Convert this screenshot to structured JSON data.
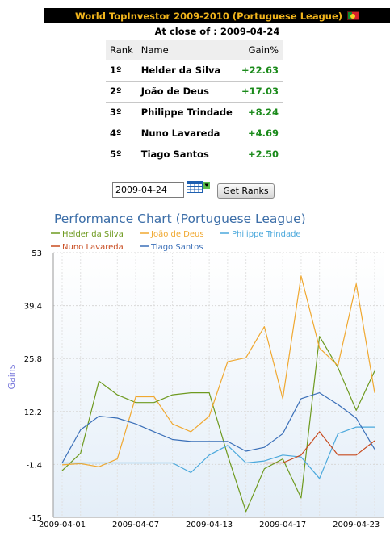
{
  "header": {
    "title": "World TopInvestor 2009-2010 (Portuguese League)",
    "flag_icon": "portugal-flag-icon"
  },
  "close_line": {
    "label": "At close of :",
    "date": "2009-04-24"
  },
  "ranking_table": {
    "columns": [
      "Rank",
      "Name",
      "Gain%"
    ],
    "rows": [
      {
        "rank": "1º",
        "name": "Helder da Silva",
        "gain": "+22.63"
      },
      {
        "rank": "2º",
        "name": "João de Deus",
        "gain": "+17.03"
      },
      {
        "rank": "3º",
        "name": "Philippe Trindade",
        "gain": "+8.24"
      },
      {
        "rank": "4º",
        "name": "Nuno Lavareda",
        "gain": "+4.69"
      },
      {
        "rank": "5º",
        "name": "Tiago Santos",
        "gain": "+2.50"
      }
    ]
  },
  "controls": {
    "date_value": "2009-04-24",
    "calendar_icon": "calendar-icon",
    "get_ranks_label": "Get Ranks"
  },
  "colors": {
    "header_bg": "#000000",
    "header_text": "#f2b51c",
    "gain_green": "#1a8a1a",
    "chart_title": "#3c6ea8"
  },
  "chart_data": {
    "type": "line",
    "title": "Performance Chart (Portuguese League)",
    "ylabel": "Gains",
    "xlabel": "",
    "ylim": [
      -15,
      53
    ],
    "yticks": [
      -15,
      -1.4,
      12.2,
      25.8,
      39.4,
      53
    ],
    "ytick_labels": [
      "-15",
      "-1.4",
      "12.2",
      "25.8",
      "39.4",
      "53"
    ],
    "x": [
      "2009-04-01",
      "2009-04-02",
      "2009-04-03",
      "2009-04-06",
      "2009-04-07",
      "2009-04-08",
      "2009-04-09",
      "2009-04-10",
      "2009-04-13",
      "2009-04-14",
      "2009-04-15",
      "2009-04-16",
      "2009-04-17",
      "2009-04-20",
      "2009-04-21",
      "2009-04-22",
      "2009-04-23",
      "2009-04-24"
    ],
    "xtick_labels": [
      {
        "index": 0,
        "label": "2009-04-01"
      },
      {
        "index": 4,
        "label": "2009-04-07"
      },
      {
        "index": 8,
        "label": "2009-04-13"
      },
      {
        "index": 12,
        "label": "2009-04-17"
      },
      {
        "index": 16,
        "label": "2009-04-23"
      }
    ],
    "legend_position": "top",
    "grid": true,
    "series": [
      {
        "name": "Helder da Silva",
        "color": "#6e9a1f",
        "values": [
          -3,
          1.5,
          20,
          16.5,
          14.5,
          14.5,
          16.5,
          17,
          17,
          1,
          -13.5,
          -2.5,
          0,
          -10,
          31.5,
          23.5,
          12.5,
          22.6
        ]
      },
      {
        "name": "João de Deus",
        "color": "#f0a830",
        "values": [
          -1.5,
          -1.2,
          -2,
          0,
          16,
          16,
          9,
          7,
          11,
          25,
          26,
          34,
          15.5,
          47,
          28.5,
          24,
          45,
          17
        ]
      },
      {
        "name": "Philippe Trindade",
        "color": "#4aa8dc",
        "values": [
          -1,
          -1,
          -1,
          -1,
          -1,
          -1,
          -1,
          -3.5,
          1,
          3.5,
          -1,
          -0.5,
          1,
          0.5,
          -5,
          6.5,
          8.2,
          8.2
        ]
      },
      {
        "name": "Nuno Lavareda",
        "color": "#c84a1e",
        "values": [
          null,
          null,
          null,
          null,
          null,
          null,
          null,
          null,
          null,
          null,
          null,
          -1,
          -1,
          1,
          7,
          1,
          1,
          4.7
        ]
      },
      {
        "name": "Tiago Santos",
        "color": "#3a6fb8",
        "values": [
          -1,
          7.5,
          11,
          10.5,
          9,
          7,
          5,
          4.5,
          4.5,
          4.5,
          2,
          3,
          6.5,
          15.5,
          17,
          14,
          10.5,
          2.5
        ]
      }
    ]
  }
}
